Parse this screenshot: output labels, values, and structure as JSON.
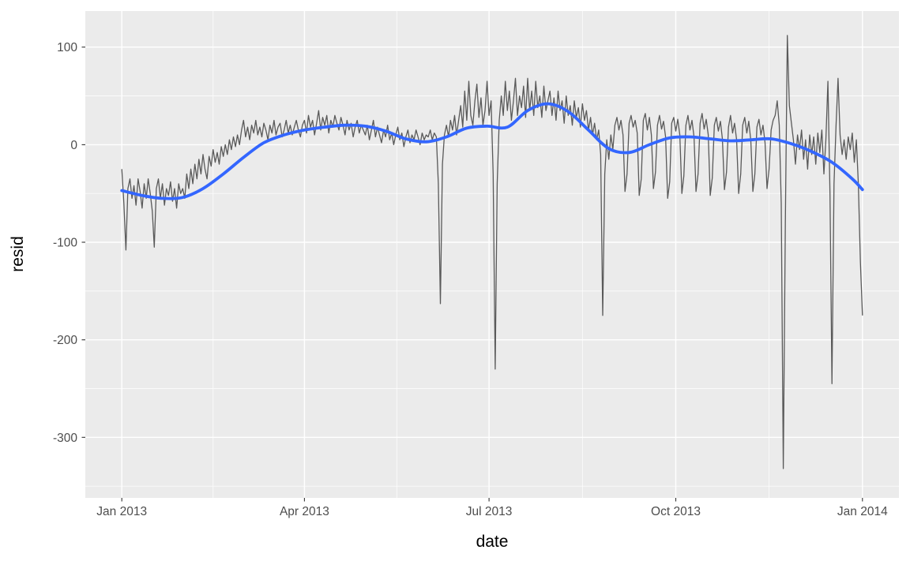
{
  "chart_data": {
    "type": "line",
    "title": "",
    "xlabel": "date",
    "ylabel": "resid",
    "grid": "on",
    "legend": "none",
    "x_unit": "days since 2013-01-01",
    "x_domain": [
      -18,
      383
    ],
    "y_domain": [
      -362,
      137
    ],
    "x_ticks": [
      {
        "label": "Jan 2013",
        "day": 0
      },
      {
        "label": "Apr 2013",
        "day": 90
      },
      {
        "label": "Jul 2013",
        "day": 181
      },
      {
        "label": "Oct 2013",
        "day": 273
      },
      {
        "label": "Jan 2014",
        "day": 365
      }
    ],
    "x_minor_days": [
      45,
      135.5,
      227,
      319
    ],
    "y_ticks": [
      {
        "label": "100",
        "value": 100
      },
      {
        "label": "0",
        "value": 0
      },
      {
        "label": "-100",
        "value": -100
      },
      {
        "label": "-200",
        "value": -200
      },
      {
        "label": "-300",
        "value": -300
      }
    ],
    "y_minor_values": [
      50,
      -50,
      -150,
      -250,
      -350
    ],
    "colors": {
      "panel_bg": "#EBEBEB",
      "grid": "#FFFFFF",
      "axis_text": "#4D4D4D",
      "tick": "#333333",
      "resid_line": "#595959",
      "smooth_line": "#3366FF"
    },
    "series": [
      {
        "name": "resid",
        "style": "jagged-daily-line",
        "color": "#595959",
        "x_start_day": 0,
        "x_step_days": 1,
        "values": [
          -25,
          -60,
          -108,
          -45,
          -35,
          -55,
          -42,
          -62,
          -35,
          -48,
          -65,
          -40,
          -55,
          -35,
          -50,
          -68,
          -105,
          -45,
          -35,
          -55,
          -40,
          -62,
          -45,
          -52,
          -38,
          -58,
          -45,
          -65,
          -40,
          -50,
          -45,
          -55,
          -30,
          -45,
          -25,
          -40,
          -20,
          -35,
          -15,
          -30,
          -10,
          -25,
          -35,
          -12,
          -22,
          -5,
          -18,
          -8,
          -20,
          -2,
          -12,
          0,
          -10,
          5,
          -5,
          8,
          -2,
          10,
          0,
          15,
          25,
          8,
          18,
          5,
          20,
          12,
          25,
          10,
          18,
          8,
          22,
          15,
          5,
          20,
          12,
          25,
          10,
          18,
          22,
          8,
          15,
          25,
          12,
          20,
          10,
          18,
          25,
          15,
          8,
          20,
          25,
          12,
          30,
          18,
          25,
          10,
          22,
          35,
          15,
          28,
          20,
          30,
          12,
          25,
          18,
          30,
          22,
          15,
          28,
          20,
          10,
          25,
          15,
          22,
          8,
          18,
          25,
          12,
          20,
          15,
          10,
          20,
          5,
          15,
          25,
          8,
          18,
          10,
          2,
          15,
          8,
          20,
          5,
          12,
          0,
          10,
          18,
          5,
          12,
          -2,
          8,
          15,
          2,
          10,
          5,
          15,
          8,
          0,
          12,
          5,
          10,
          8,
          15,
          5,
          12,
          8,
          -40,
          -163,
          -20,
          10,
          20,
          8,
          25,
          15,
          30,
          10,
          25,
          40,
          18,
          55,
          25,
          65,
          30,
          20,
          45,
          62,
          28,
          48,
          20,
          35,
          65,
          30,
          45,
          -30,
          -230,
          -40,
          25,
          50,
          30,
          65,
          35,
          55,
          25,
          45,
          68,
          30,
          50,
          38,
          60,
          28,
          68,
          35,
          55,
          30,
          65,
          38,
          50,
          28,
          60,
          35,
          45,
          55,
          30,
          48,
          25,
          55,
          35,
          45,
          22,
          50,
          30,
          40,
          20,
          45,
          28,
          38,
          18,
          42,
          25,
          35,
          15,
          28,
          10,
          22,
          5,
          15,
          -10,
          -175,
          -30,
          5,
          -15,
          10,
          -5,
          20,
          28,
          15,
          25,
          10,
          -48,
          -30,
          22,
          30,
          18,
          25,
          12,
          -52,
          -35,
          25,
          32,
          15,
          28,
          10,
          -45,
          -28,
          20,
          30,
          16,
          24,
          8,
          -55,
          -38,
          22,
          28,
          14,
          26,
          10,
          -50,
          -32,
          20,
          30,
          15,
          25,
          8,
          -48,
          -30,
          22,
          32,
          16,
          26,
          10,
          -52,
          -34,
          20,
          28,
          14,
          24,
          6,
          -46,
          -28,
          18,
          30,
          12,
          22,
          5,
          -50,
          -30,
          20,
          28,
          12,
          24,
          4,
          -48,
          -30,
          18,
          26,
          10,
          20,
          2,
          -45,
          -25,
          15,
          25,
          30,
          45,
          20,
          -60,
          -332,
          -80,
          112,
          40,
          22,
          5,
          -20,
          10,
          -5,
          15,
          -15,
          5,
          -25,
          10,
          -10,
          8,
          -20,
          12,
          -8,
          15,
          -30,
          5,
          65,
          -50,
          -245,
          -40,
          20,
          68,
          10,
          -10,
          5,
          -15,
          8,
          -5,
          12,
          -18,
          5,
          -40,
          -120,
          -175
        ]
      },
      {
        "name": "smooth",
        "style": "loess-smooth-line",
        "color": "#3366FF",
        "x": [
          0,
          10,
          20,
          30,
          40,
          50,
          60,
          70,
          80,
          90,
          100,
          110,
          120,
          130,
          140,
          150,
          160,
          170,
          180,
          190,
          200,
          210,
          220,
          230,
          240,
          250,
          260,
          270,
          280,
          290,
          300,
          310,
          320,
          330,
          340,
          350,
          360,
          365
        ],
        "y": [
          -47,
          -52,
          -55,
          -54,
          -45,
          -30,
          -13,
          2,
          10,
          15,
          18,
          20,
          19,
          14,
          6,
          3,
          8,
          17,
          19,
          18,
          35,
          42,
          34,
          15,
          -4,
          -8,
          0,
          7,
          8,
          6,
          4,
          5,
          6,
          1,
          -7,
          -18,
          -35,
          -46
        ]
      }
    ]
  }
}
